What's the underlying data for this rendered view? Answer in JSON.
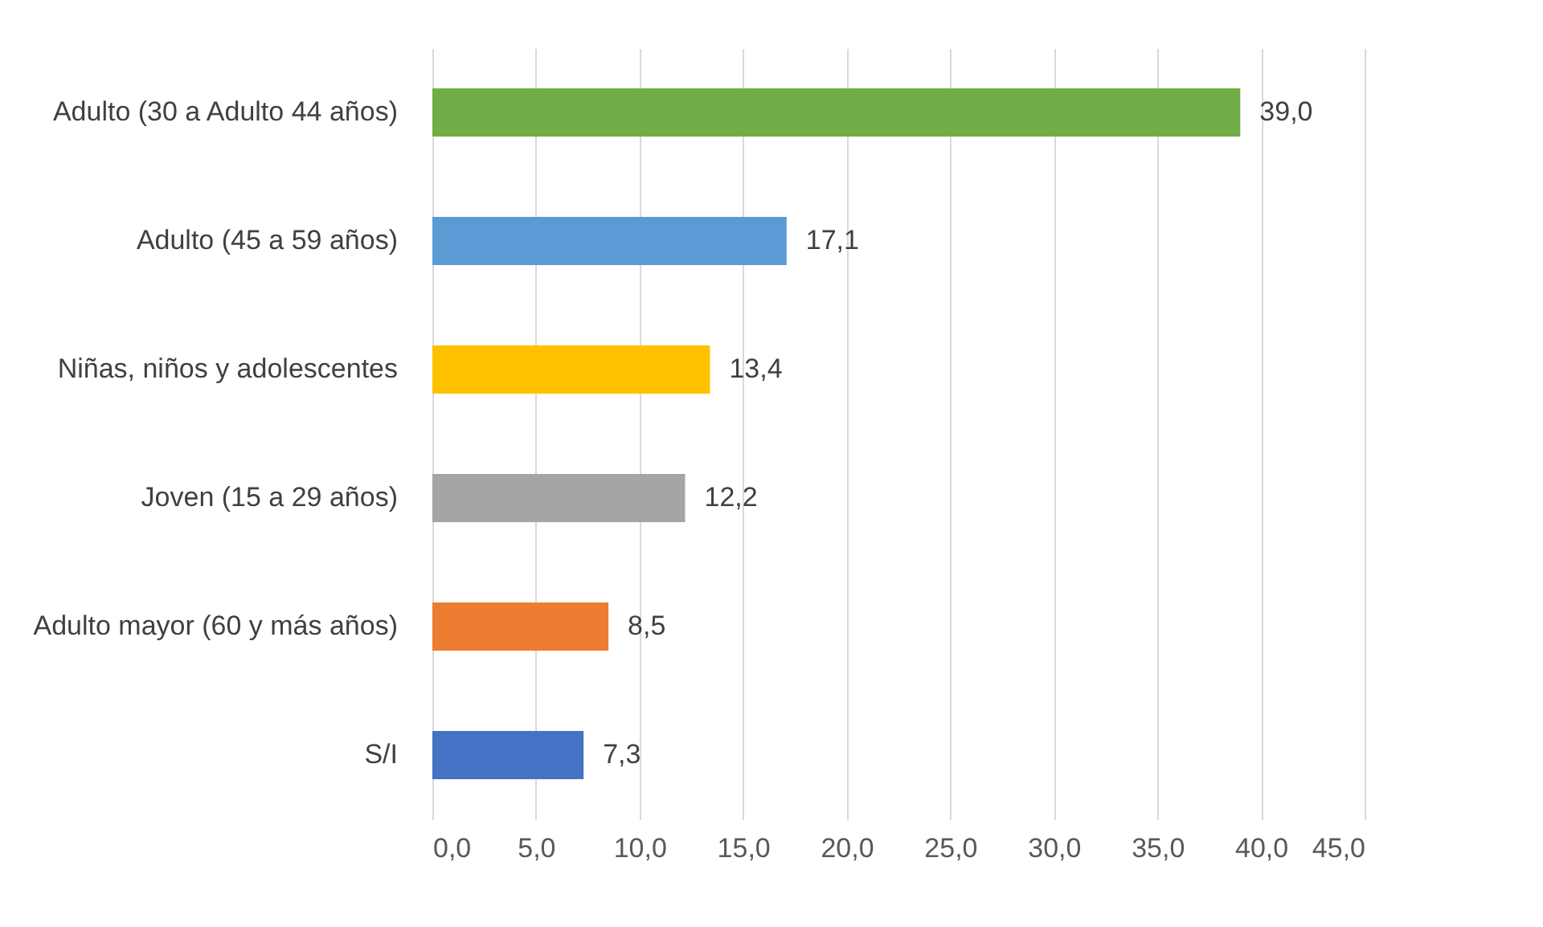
{
  "chart_data": {
    "type": "bar",
    "orientation": "horizontal",
    "categories": [
      "Adulto (30 a Adulto 44 años)",
      "Adulto (45 a 59 años)",
      "Niñas, niños y adolescentes",
      "Joven (15 a 29 años)",
      "Adulto mayor (60 y más años)",
      "S/I"
    ],
    "values": [
      39.0,
      17.1,
      13.4,
      12.2,
      8.5,
      7.3
    ],
    "colors": [
      "#70ad47",
      "#5b9bd5",
      "#ffc000",
      "#a5a5a5",
      "#ed7d31",
      "#4472c4"
    ],
    "value_labels": [
      "39,0",
      "17,1",
      "13,4",
      "12,2",
      "8,5",
      "7,3"
    ],
    "xlim": [
      0,
      45
    ],
    "xticks": [
      {
        "value": 0,
        "label": "0,0"
      },
      {
        "value": 5,
        "label": "5,0"
      },
      {
        "value": 10,
        "label": "10,0"
      },
      {
        "value": 15,
        "label": "15,0"
      },
      {
        "value": 20,
        "label": "20,0"
      },
      {
        "value": 25,
        "label": "25,0"
      },
      {
        "value": 30,
        "label": "30,0"
      },
      {
        "value": 35,
        "label": "35,0"
      },
      {
        "value": 40,
        "label": "40,0"
      },
      {
        "value": 45,
        "label": "45,0"
      }
    ],
    "grid": "x"
  }
}
